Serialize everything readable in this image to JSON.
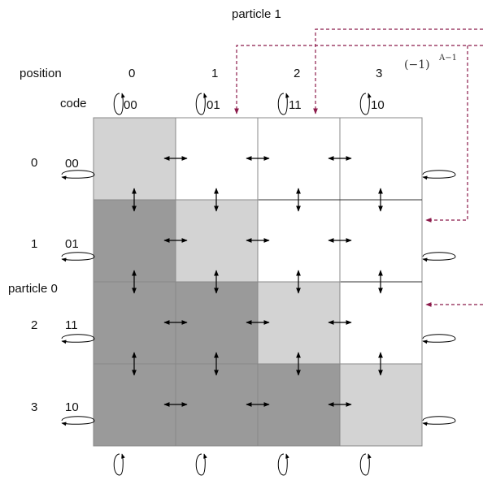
{
  "titles": {
    "column_particle": "particle 1",
    "row_particle": "particle 0",
    "position_label": "position",
    "code_label": "code"
  },
  "positions": [
    "0",
    "1",
    "2",
    "3"
  ],
  "codes": [
    "00",
    "01",
    "11",
    "10"
  ],
  "sign_factor": {
    "base": "(−1)",
    "exponent": "A−1"
  },
  "colors": {
    "diagonal": "#d3d3d3",
    "lower": "#9a9a9a",
    "upper": "#ffffff",
    "grid": "#888888",
    "dashed_arrow": "#8b1a4a"
  },
  "cells": [
    [
      "diagonal",
      "upper",
      "upper",
      "upper"
    ],
    [
      "lower",
      "diagonal",
      "upper",
      "upper"
    ],
    [
      "lower",
      "lower",
      "diagonal",
      "upper"
    ],
    [
      "lower",
      "lower",
      "lower",
      "diagonal"
    ]
  ]
}
